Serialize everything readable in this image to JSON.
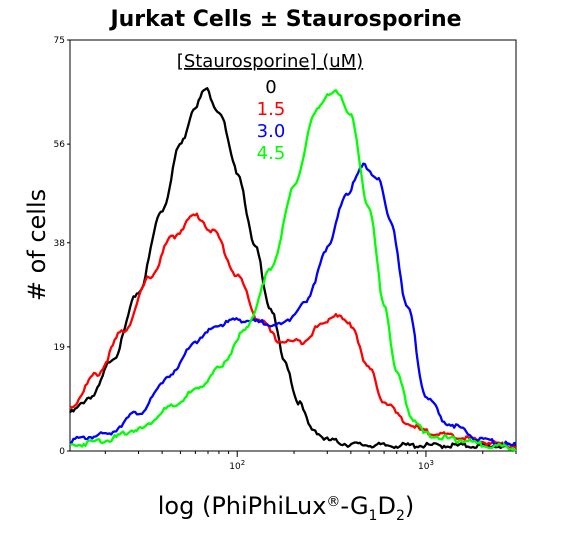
{
  "chart_data": {
    "type": "line",
    "title": "Jurkat Cells ± Staurosporine",
    "xlabel": {
      "prefix": "log (PhiPhiLux",
      "registered": "®",
      "mid": "-G",
      "sub1": "1",
      "d": "D",
      "sub2": "2",
      "suffix": ")"
    },
    "ylabel": "# of cells",
    "x_scale": "log",
    "xlim": [
      13,
      3000
    ],
    "ylim": [
      0,
      75
    ],
    "x_ticks": [
      {
        "value": 100,
        "base": "10",
        "exp": "2"
      },
      {
        "value": 1000,
        "base": "10",
        "exp": "3"
      }
    ],
    "y_ticks": [
      {
        "value": 0,
        "label": "0"
      },
      {
        "value": 19,
        "label": "19"
      },
      {
        "value": 38,
        "label": "38"
      },
      {
        "value": 56,
        "label": "56"
      },
      {
        "value": 75,
        "label": "75"
      }
    ],
    "legend": {
      "title": "[Staurosporine] (uM)",
      "position": "top-center"
    },
    "series": [
      {
        "name": "0",
        "color": "#000000",
        "points": [
          [
            13,
            7
          ],
          [
            17,
            10
          ],
          [
            22,
            17
          ],
          [
            30,
            29
          ],
          [
            40,
            44
          ],
          [
            50,
            56
          ],
          [
            60,
            63
          ],
          [
            68,
            66
          ],
          [
            80,
            62
          ],
          [
            100,
            51
          ],
          [
            125,
            37
          ],
          [
            150,
            26
          ],
          [
            180,
            16
          ],
          [
            210,
            9
          ],
          [
            250,
            4
          ],
          [
            300,
            2
          ],
          [
            400,
            1.2
          ],
          [
            600,
            1
          ],
          [
            1000,
            1
          ],
          [
            3000,
            0.9
          ]
        ]
      },
      {
        "name": "1.5",
        "color": "#ff0000",
        "points": [
          [
            13,
            8
          ],
          [
            18,
            14
          ],
          [
            25,
            22
          ],
          [
            35,
            32
          ],
          [
            45,
            39
          ],
          [
            60,
            43
          ],
          [
            75,
            40
          ],
          [
            100,
            32
          ],
          [
            130,
            24
          ],
          [
            170,
            20
          ],
          [
            220,
            20
          ],
          [
            280,
            23
          ],
          [
            330,
            25
          ],
          [
            400,
            23
          ],
          [
            500,
            15
          ],
          [
            600,
            9
          ],
          [
            800,
            5
          ],
          [
            1000,
            3.5
          ],
          [
            1500,
            2.5
          ],
          [
            2200,
            1.5
          ],
          [
            3000,
            1
          ]
        ]
      },
      {
        "name": "3.0",
        "color": "#0000ff",
        "points": [
          [
            13,
            2
          ],
          [
            20,
            3
          ],
          [
            30,
            7
          ],
          [
            45,
            14
          ],
          [
            60,
            20
          ],
          [
            80,
            23
          ],
          [
            100,
            24
          ],
          [
            130,
            23.5
          ],
          [
            170,
            23
          ],
          [
            230,
            27
          ],
          [
            300,
            37
          ],
          [
            380,
            47
          ],
          [
            470,
            52
          ],
          [
            550,
            50
          ],
          [
            650,
            42
          ],
          [
            800,
            26
          ],
          [
            1000,
            10
          ],
          [
            1300,
            5
          ],
          [
            2000,
            2
          ],
          [
            3000,
            1
          ]
        ]
      },
      {
        "name": "4.5",
        "color": "#00ff00",
        "points": [
          [
            13,
            1
          ],
          [
            20,
            2
          ],
          [
            30,
            4
          ],
          [
            45,
            8
          ],
          [
            60,
            11
          ],
          [
            80,
            15
          ],
          [
            110,
            22
          ],
          [
            150,
            33
          ],
          [
            200,
            48
          ],
          [
            260,
            62
          ],
          [
            330,
            66
          ],
          [
            400,
            61
          ],
          [
            500,
            44
          ],
          [
            600,
            27
          ],
          [
            700,
            14
          ],
          [
            850,
            6
          ],
          [
            1000,
            3
          ],
          [
            1500,
            2
          ],
          [
            2200,
            1
          ],
          [
            3000,
            0.6
          ]
        ]
      }
    ]
  }
}
